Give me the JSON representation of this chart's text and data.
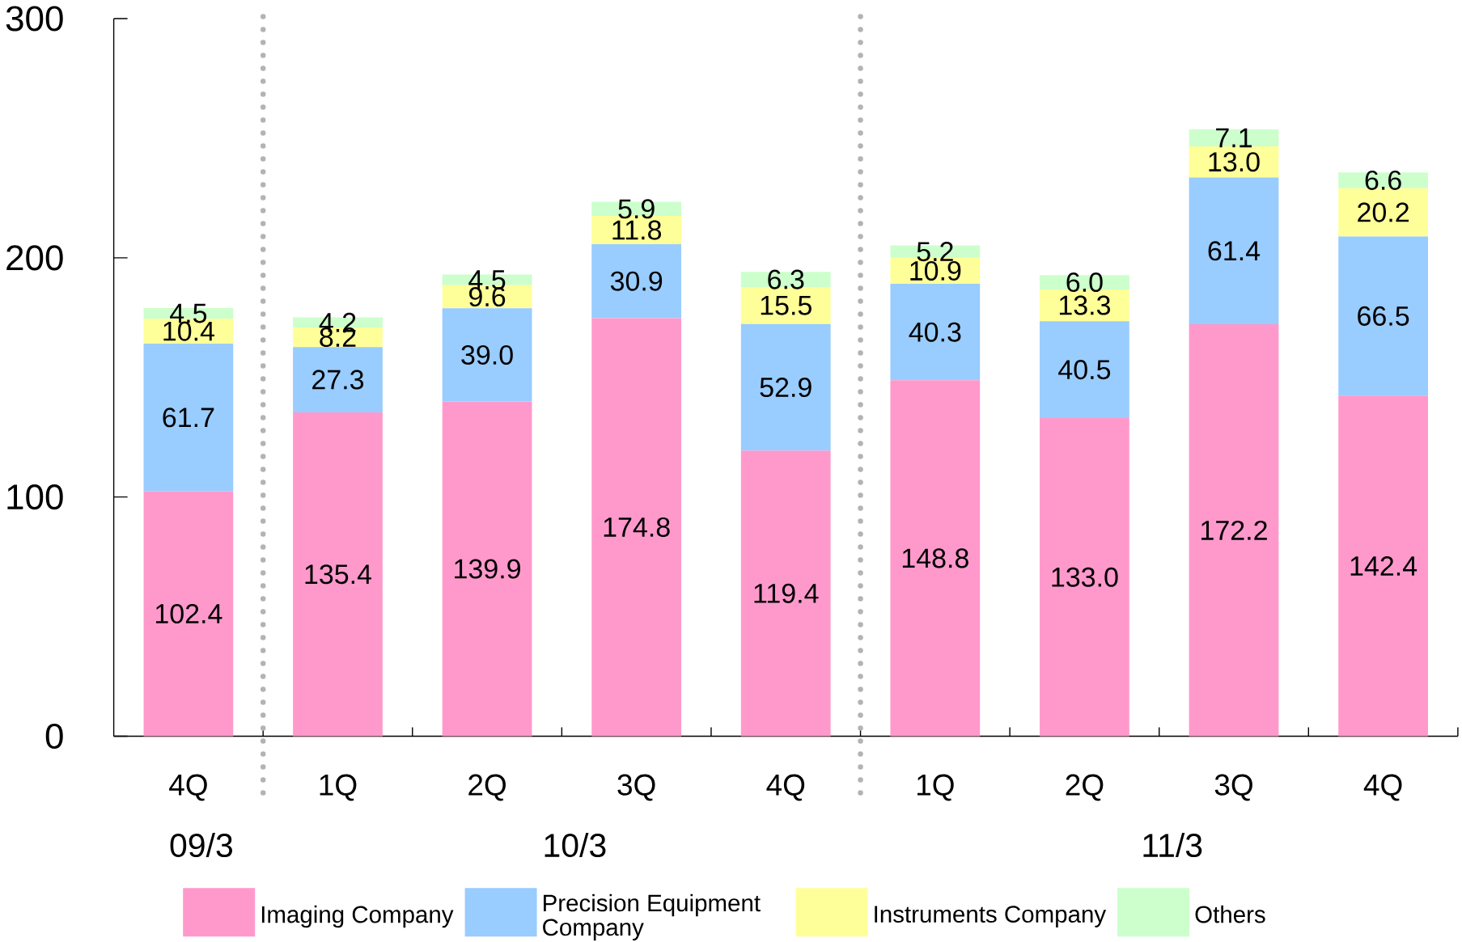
{
  "chart_data": {
    "type": "bar",
    "stacked": true,
    "categories": [
      "4Q",
      "1Q",
      "2Q",
      "3Q",
      "4Q",
      "1Q",
      "2Q",
      "3Q",
      "4Q"
    ],
    "series": [
      {
        "name": "Imaging Company",
        "color": "#ff99cc",
        "values": [
          102.4,
          135.4,
          139.9,
          174.8,
          119.4,
          148.8,
          133.0,
          172.2,
          142.4
        ],
        "value_labels": [
          "102.4",
          "135.4",
          "139.9",
          "174.8",
          "119.4",
          "148.8",
          "133.0",
          "172.2",
          "142.4"
        ]
      },
      {
        "name": "Precision Equipment Company",
        "color": "#99ccff",
        "values": [
          61.7,
          27.3,
          39.0,
          30.9,
          52.9,
          40.3,
          40.5,
          61.4,
          66.5
        ],
        "value_labels": [
          "61.7",
          "27.3",
          "39.0",
          "30.9",
          "52.9",
          "40.3",
          "40.5",
          "61.4",
          "66.5"
        ]
      },
      {
        "name": "Instruments Company",
        "color": "#ffff99",
        "values": [
          10.4,
          8.2,
          9.6,
          11.8,
          15.5,
          10.9,
          13.3,
          13.0,
          20.2
        ],
        "value_labels": [
          "10.4",
          "8.2",
          "9.6",
          "11.8",
          "15.5",
          "10.9",
          "13.3",
          "13.0",
          "20.2"
        ]
      },
      {
        "name": "Others",
        "color": "#ccffcc",
        "values": [
          4.5,
          4.2,
          4.5,
          5.9,
          6.3,
          5.2,
          6.0,
          7.1,
          6.6
        ],
        "value_labels": [
          "4.5",
          "4.2",
          "4.5",
          "5.9",
          "6.3",
          "5.2",
          "6.0",
          "7.1",
          "6.6"
        ]
      }
    ],
    "ylim": [
      0,
      300
    ],
    "yticks": [
      0,
      100,
      200,
      300
    ],
    "legend": "bottom",
    "annotations": [
      "09/3",
      "10/3",
      "11/3"
    ]
  }
}
